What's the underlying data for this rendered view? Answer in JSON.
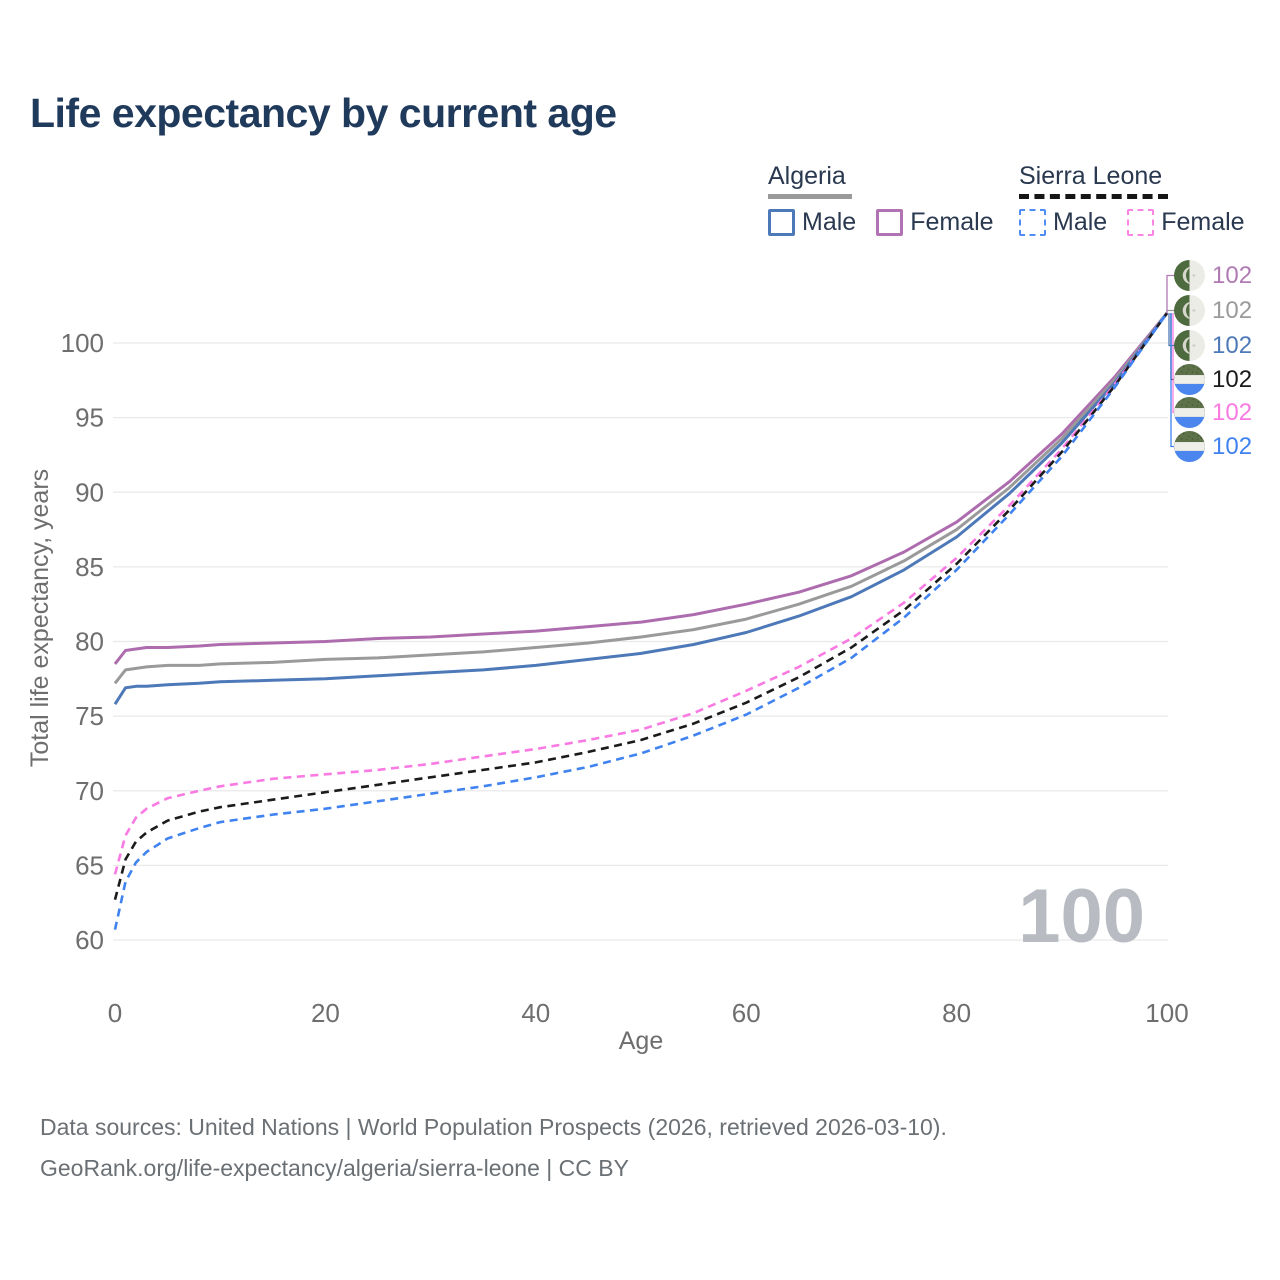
{
  "title": "Life expectancy by current age",
  "legend": {
    "groups": [
      {
        "name": "Algeria",
        "items": [
          {
            "label": "Male"
          },
          {
            "label": "Female"
          }
        ]
      },
      {
        "name": "Sierra Leone",
        "items": [
          {
            "label": "Male"
          },
          {
            "label": "Female"
          }
        ]
      }
    ]
  },
  "colors": {
    "title_text": "#203a5c",
    "axis_text": "#6e6e6e",
    "gridline": "#e9e9e9",
    "watermark": "#b8bcc2",
    "algeria_male": "#4e79b8",
    "algeria_female": "#ad6cae",
    "algeria_all": "#9a9a9a",
    "sierra_leone_male": "#3f82f0",
    "sierra_leone_female": "#f97ae2",
    "sierra_leone_all": "#1b1b1b"
  },
  "chart_data": {
    "type": "line",
    "title": "Life expectancy by current age",
    "xlabel": "Age",
    "ylabel": "Total life expectancy, years",
    "xlim": [
      0,
      100
    ],
    "ylim": [
      60,
      102
    ],
    "xticks": [
      0,
      20,
      40,
      60,
      80,
      100
    ],
    "yticks": [
      60,
      65,
      70,
      75,
      80,
      85,
      90,
      95,
      100
    ],
    "grid": true,
    "legend_position": "top-right",
    "x": [
      0,
      1,
      2,
      3,
      5,
      8,
      10,
      15,
      20,
      25,
      30,
      35,
      40,
      45,
      50,
      55,
      60,
      65,
      70,
      75,
      80,
      85,
      90,
      95,
      100
    ],
    "series": [
      {
        "name": "Algeria Female",
        "color": "#ad6cae",
        "style": "solid",
        "values": [
          78.5,
          79.4,
          79.5,
          79.6,
          79.6,
          79.7,
          79.8,
          79.9,
          80.0,
          80.2,
          80.3,
          80.5,
          80.7,
          81.0,
          81.3,
          81.8,
          82.5,
          83.3,
          84.4,
          86.0,
          88.0,
          90.7,
          93.9,
          97.7,
          102
        ]
      },
      {
        "name": "Algeria All",
        "color": "#9a9a9a",
        "style": "solid",
        "values": [
          77.2,
          78.1,
          78.2,
          78.3,
          78.4,
          78.4,
          78.5,
          78.6,
          78.8,
          78.9,
          79.1,
          79.3,
          79.6,
          79.9,
          80.3,
          80.8,
          81.5,
          82.5,
          83.7,
          85.4,
          87.5,
          90.3,
          93.6,
          97.5,
          102
        ]
      },
      {
        "name": "Algeria Male",
        "color": "#4e79b8",
        "style": "solid",
        "values": [
          75.8,
          76.9,
          77.0,
          77.0,
          77.1,
          77.2,
          77.3,
          77.4,
          77.5,
          77.7,
          77.9,
          78.1,
          78.4,
          78.8,
          79.2,
          79.8,
          80.6,
          81.7,
          83.0,
          84.8,
          87.0,
          89.9,
          93.3,
          97.3,
          102
        ]
      },
      {
        "name": "Sierra Leone Female",
        "color": "#f97ae2",
        "style": "dashed",
        "values": [
          64.4,
          67.0,
          68.2,
          68.8,
          69.5,
          70.0,
          70.3,
          70.8,
          71.1,
          71.4,
          71.8,
          72.3,
          72.8,
          73.4,
          74.1,
          75.2,
          76.7,
          78.3,
          80.2,
          82.6,
          85.6,
          89.1,
          92.9,
          97.2,
          102
        ]
      },
      {
        "name": "Sierra Leone All",
        "color": "#1b1b1b",
        "style": "dashed",
        "values": [
          62.7,
          65.4,
          66.6,
          67.2,
          68.0,
          68.6,
          68.9,
          69.4,
          69.9,
          70.4,
          70.9,
          71.4,
          71.9,
          72.6,
          73.4,
          74.5,
          75.9,
          77.6,
          79.6,
          82.1,
          85.2,
          88.8,
          92.7,
          97.1,
          102
        ]
      },
      {
        "name": "Sierra Leone Male",
        "color": "#3f82f0",
        "style": "dashed",
        "values": [
          60.7,
          63.9,
          65.2,
          65.9,
          66.8,
          67.5,
          67.9,
          68.4,
          68.8,
          69.3,
          69.8,
          70.3,
          70.9,
          71.6,
          72.5,
          73.7,
          75.1,
          76.9,
          78.9,
          81.6,
          84.8,
          88.5,
          92.4,
          97.0,
          102
        ]
      }
    ]
  },
  "end_labels": [
    {
      "series": "Algeria Female",
      "flag": "algeria",
      "value": "102",
      "color": "#b07ab3"
    },
    {
      "series": "Algeria All",
      "flag": "algeria",
      "value": "102",
      "color": "#9a9a9a"
    },
    {
      "series": "Algeria Male",
      "flag": "algeria",
      "value": "102",
      "color": "#4e79b8"
    },
    {
      "series": "Sierra Leone All",
      "flag": "sierra-leone",
      "value": "102",
      "color": "#1b1b1b"
    },
    {
      "series": "Sierra Leone Female",
      "flag": "sierra-leone",
      "value": "102",
      "color": "#f97ae2"
    },
    {
      "series": "Sierra Leone Male",
      "flag": "sierra-leone",
      "value": "102",
      "color": "#3f82f0"
    }
  ],
  "age_indicator": "100",
  "footer": {
    "line1": "Data sources: United Nations | World Population Prospects (2026, retrieved 2026-03-10).",
    "line2": "GeoRank.org/life-expectancy/algeria/sierra-leone | CC BY"
  }
}
